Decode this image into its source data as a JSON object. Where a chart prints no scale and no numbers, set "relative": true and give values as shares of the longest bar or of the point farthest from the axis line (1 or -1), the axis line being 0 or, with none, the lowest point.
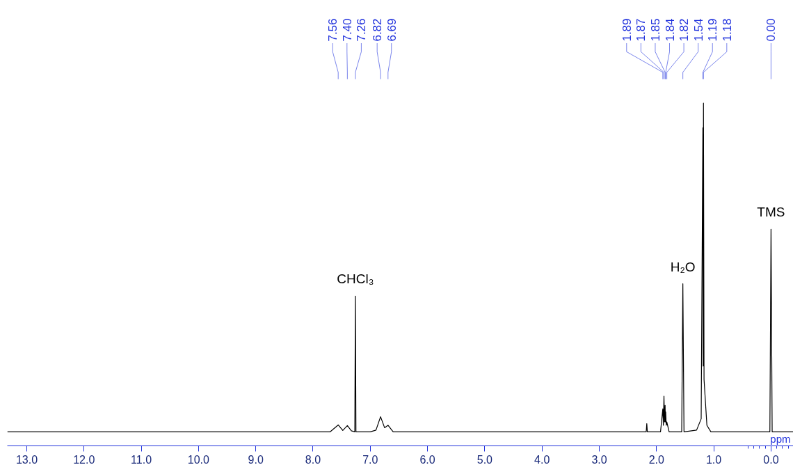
{
  "chart_data": {
    "type": "line",
    "relative": true,
    "xlabel": "ppm",
    "xlim": [
      13.34,
      -0.39
    ],
    "xticks": [
      {
        "value": 13,
        "label": "13.0"
      },
      {
        "value": 12,
        "label": "12.0"
      },
      {
        "value": 11,
        "label": "11.0"
      },
      {
        "value": 10,
        "label": "10.0"
      },
      {
        "value": 9,
        "label": "9.0"
      },
      {
        "value": 8,
        "label": "8.0"
      },
      {
        "value": 7,
        "label": "7.0"
      },
      {
        "value": 6,
        "label": "6.0"
      },
      {
        "value": 5,
        "label": "5.0"
      },
      {
        "value": 4,
        "label": "4.0"
      },
      {
        "value": 3,
        "label": "3.0"
      },
      {
        "value": 2,
        "label": "2.0"
      },
      {
        "value": 1,
        "label": "1.0"
      },
      {
        "value": 0,
        "label": "0.0"
      }
    ],
    "series": [
      {
        "color": "#000000",
        "x": [
          13.34,
          7.7,
          7.56,
          7.48,
          7.4,
          7.33,
          7.27,
          7.26,
          7.25,
          7.0,
          6.9,
          6.82,
          6.75,
          6.69,
          6.6,
          2.18,
          2.17,
          2.16,
          1.93,
          1.89,
          1.88,
          1.87,
          1.86,
          1.85,
          1.845,
          1.84,
          1.83,
          1.82,
          1.78,
          1.56,
          1.54,
          1.52,
          1.3,
          1.22,
          1.19,
          1.185,
          1.18,
          1.17,
          1.12,
          1.05,
          0.02,
          0.0,
          -0.02,
          -0.39
        ],
        "values": [
          0.041,
          0.041,
          0.061,
          0.045,
          0.059,
          0.044,
          0.041,
          0.437,
          0.041,
          0.041,
          0.046,
          0.085,
          0.053,
          0.06,
          0.041,
          0.041,
          0.065,
          0.041,
          0.041,
          0.108,
          0.06,
          0.145,
          0.07,
          0.118,
          0.07,
          0.099,
          0.06,
          0.07,
          0.041,
          0.041,
          0.473,
          0.041,
          0.046,
          0.079,
          0.928,
          0.233,
          1,
          0.194,
          0.06,
          0.041,
          0.041,
          0.632,
          0.041,
          0.041
        ]
      }
    ],
    "annotations": [
      {
        "text": "7.56",
        "x": 7.56
      },
      {
        "text": "7.40",
        "x": 7.4
      },
      {
        "text": "7.26",
        "x": 7.26
      },
      {
        "text": "6.82",
        "x": 6.82
      },
      {
        "text": "6.69",
        "x": 6.69
      },
      {
        "text": "1.89",
        "x": 1.89
      },
      {
        "text": "1.87",
        "x": 1.87
      },
      {
        "text": "1.85",
        "x": 1.85
      },
      {
        "text": "1.84",
        "x": 1.84
      },
      {
        "text": "1.82",
        "x": 1.82
      },
      {
        "text": "1.54",
        "x": 1.54
      },
      {
        "text": "1.19",
        "x": 1.19
      },
      {
        "text": "1.18",
        "x": 1.18
      },
      {
        "text": "0.00",
        "x": 0.0
      },
      {
        "text": "CHCl₃",
        "x": 7.26,
        "y": 0.437
      },
      {
        "text": "H₂O",
        "x": 1.54,
        "y": 0.473
      },
      {
        "text": "TMS",
        "x": 0.0,
        "y": 0.632
      }
    ]
  }
}
